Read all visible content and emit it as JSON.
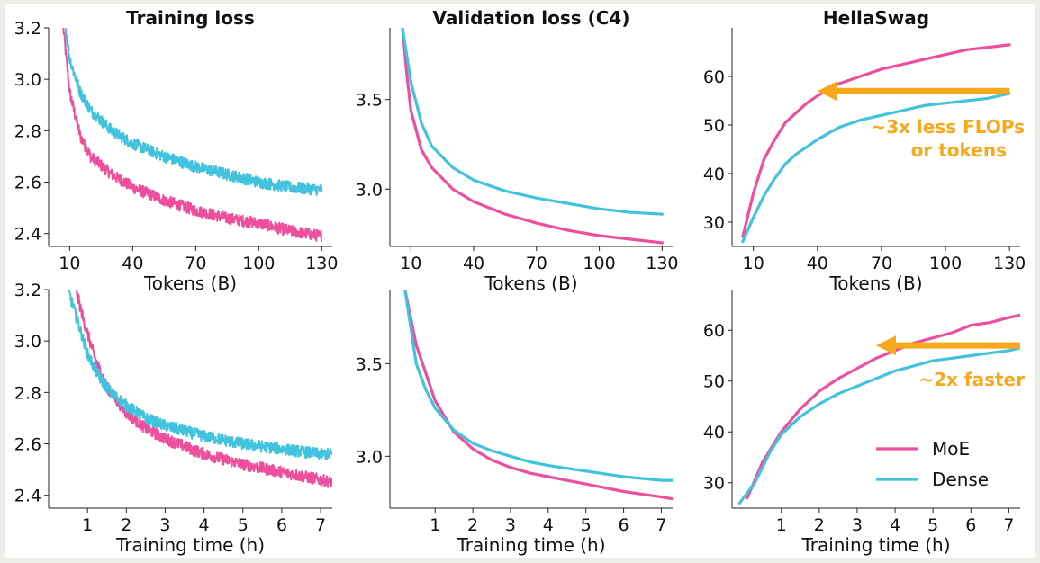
{
  "colors": {
    "moe": "#ee4f9c",
    "dense": "#42c3dd",
    "annotation": "#f7a81b",
    "axis": "#222222"
  },
  "legend": {
    "position": "bottom-right",
    "items": [
      "MoE",
      "Dense"
    ]
  },
  "chart_data": [
    {
      "id": "train-loss-tokens",
      "type": "line",
      "title": "Training loss",
      "xlabel": "Tokens (B)",
      "ylabel": "",
      "xlim": [
        0,
        135
      ],
      "ylim": [
        2.35,
        3.2
      ],
      "xticks": [
        10,
        40,
        70,
        100,
        130
      ],
      "xtick_labels": [
        "10",
        "40",
        "70",
        "100",
        "130"
      ],
      "yticks": [
        2.4,
        2.6,
        2.8,
        3.0,
        3.2
      ],
      "ytick_labels": [
        "2.4",
        "2.6",
        "2.8",
        "3.0",
        "3.2"
      ],
      "noisy": true,
      "series": [
        {
          "name": "MoE",
          "x": [
            7,
            10,
            15,
            20,
            30,
            40,
            55,
            70,
            85,
            100,
            115,
            130
          ],
          "y": [
            3.2,
            2.95,
            2.78,
            2.7,
            2.63,
            2.58,
            2.53,
            2.49,
            2.46,
            2.44,
            2.41,
            2.39
          ]
        },
        {
          "name": "Dense",
          "x": [
            8,
            10,
            15,
            20,
            30,
            40,
            55,
            70,
            85,
            100,
            115,
            130
          ],
          "y": [
            3.2,
            3.08,
            2.95,
            2.88,
            2.8,
            2.75,
            2.7,
            2.66,
            2.63,
            2.6,
            2.58,
            2.57
          ]
        }
      ]
    },
    {
      "id": "val-loss-tokens",
      "type": "line",
      "title": "Validation loss (C4)",
      "xlabel": "Tokens (B)",
      "ylabel": "",
      "xlim": [
        0,
        135
      ],
      "ylim": [
        2.68,
        3.9
      ],
      "xticks": [
        10,
        40,
        70,
        100,
        130
      ],
      "xtick_labels": [
        "10",
        "40",
        "70",
        "100",
        "130"
      ],
      "yticks": [
        3.0,
        3.5
      ],
      "ytick_labels": [
        "3.0",
        "3.5"
      ],
      "series": [
        {
          "name": "MoE",
          "x": [
            6,
            8,
            10,
            15,
            20,
            30,
            40,
            55,
            70,
            85,
            100,
            115,
            130
          ],
          "y": [
            3.9,
            3.65,
            3.44,
            3.22,
            3.12,
            3.0,
            2.93,
            2.86,
            2.81,
            2.77,
            2.74,
            2.72,
            2.7
          ]
        },
        {
          "name": "Dense",
          "x": [
            6,
            8,
            10,
            15,
            20,
            30,
            40,
            55,
            70,
            85,
            100,
            115,
            130
          ],
          "y": [
            3.9,
            3.75,
            3.6,
            3.37,
            3.24,
            3.12,
            3.05,
            2.99,
            2.95,
            2.92,
            2.89,
            2.87,
            2.86
          ]
        }
      ]
    },
    {
      "id": "hellaswag-tokens",
      "type": "line",
      "title": "HellaSwag",
      "xlabel": "Tokens (B)",
      "ylabel": "",
      "xlim": [
        0,
        135
      ],
      "ylim": [
        25,
        70
      ],
      "xticks": [
        10,
        40,
        70,
        100,
        130
      ],
      "xtick_labels": [
        "10",
        "40",
        "70",
        "100",
        "130"
      ],
      "yticks": [
        30,
        40,
        50,
        60
      ],
      "ytick_labels": [
        "30",
        "40",
        "50",
        "60"
      ],
      "series": [
        {
          "name": "MoE",
          "x": [
            5,
            10,
            15,
            20,
            25,
            30,
            35,
            40,
            50,
            60,
            70,
            80,
            90,
            100,
            110,
            120,
            130
          ],
          "y": [
            27,
            36,
            43,
            47,
            50.5,
            52.5,
            54.5,
            56,
            58.5,
            60,
            61.5,
            62.5,
            63.5,
            64.5,
            65.5,
            66,
            66.5
          ]
        },
        {
          "name": "Dense",
          "x": [
            5,
            10,
            15,
            20,
            25,
            30,
            35,
            40,
            50,
            60,
            70,
            80,
            90,
            100,
            110,
            120,
            130
          ],
          "y": [
            26,
            31,
            35.5,
            39,
            42,
            44,
            45.5,
            47,
            49.5,
            51,
            52,
            53,
            54,
            54.5,
            55,
            55.5,
            56.5
          ]
        }
      ],
      "arrow": {
        "from": [
          130,
          57
        ],
        "to": [
          40,
          57
        ]
      },
      "annotation": [
        "~3x less FLOPs",
        "or tokens"
      ]
    },
    {
      "id": "train-loss-time",
      "type": "line",
      "title": "",
      "xlabel": "Training time (h)",
      "ylabel": "",
      "xlim": [
        0,
        7.3
      ],
      "ylim": [
        2.35,
        3.2
      ],
      "xticks": [
        1,
        2,
        3,
        4,
        5,
        6,
        7
      ],
      "xtick_labels": [
        "1",
        "2",
        "3",
        "4",
        "5",
        "6",
        "7"
      ],
      "yticks": [
        2.4,
        2.6,
        2.8,
        3.0,
        3.2
      ],
      "ytick_labels": [
        "2.4",
        "2.6",
        "2.8",
        "3.0",
        "3.2"
      ],
      "noisy": true,
      "series": [
        {
          "name": "MoE",
          "x": [
            0.7,
            0.9,
            1.2,
            1.5,
            2.0,
            2.5,
            3.0,
            3.5,
            4.0,
            5.0,
            6.0,
            7.0,
            7.3
          ],
          "y": [
            3.2,
            3.08,
            2.93,
            2.82,
            2.72,
            2.66,
            2.62,
            2.59,
            2.56,
            2.52,
            2.49,
            2.46,
            2.45
          ]
        },
        {
          "name": "Dense",
          "x": [
            0.5,
            0.8,
            1.0,
            1.3,
            1.6,
            2.0,
            2.5,
            3.0,
            3.5,
            4.0,
            5.0,
            6.0,
            7.0,
            7.3
          ],
          "y": [
            3.2,
            3.05,
            2.95,
            2.86,
            2.8,
            2.75,
            2.7,
            2.67,
            2.65,
            2.63,
            2.6,
            2.58,
            2.56,
            2.56
          ]
        }
      ]
    },
    {
      "id": "val-loss-time",
      "type": "line",
      "title": "",
      "xlabel": "Training time (h)",
      "ylabel": "",
      "xlim": [
        -0.2,
        7.3
      ],
      "ylim": [
        2.72,
        3.9
      ],
      "xticks": [
        1,
        2,
        3,
        4,
        5,
        6,
        7
      ],
      "xtick_labels": [
        "1",
        "2",
        "3",
        "4",
        "5",
        "6",
        "7"
      ],
      "yticks": [
        3.0,
        3.5
      ],
      "ytick_labels": [
        "3.0",
        "3.5"
      ],
      "series": [
        {
          "name": "MoE",
          "x": [
            0.2,
            0.5,
            0.75,
            1.0,
            1.5,
            2.0,
            2.5,
            3.0,
            3.5,
            4.0,
            5.0,
            6.0,
            7.0,
            7.3
          ],
          "y": [
            3.9,
            3.6,
            3.45,
            3.3,
            3.13,
            3.04,
            2.98,
            2.94,
            2.91,
            2.89,
            2.85,
            2.81,
            2.78,
            2.77
          ]
        },
        {
          "name": "Dense",
          "x": [
            0.2,
            0.5,
            0.75,
            1.0,
            1.5,
            2.0,
            2.5,
            3.0,
            3.5,
            4.0,
            5.0,
            6.0,
            7.0,
            7.3
          ],
          "y": [
            3.9,
            3.5,
            3.36,
            3.26,
            3.14,
            3.07,
            3.03,
            3.0,
            2.97,
            2.95,
            2.92,
            2.89,
            2.87,
            2.87
          ]
        }
      ]
    },
    {
      "id": "hellaswag-time",
      "type": "line",
      "title": "",
      "xlabel": "Training time (h)",
      "ylabel": "",
      "xlim": [
        -0.3,
        7.3
      ],
      "ylim": [
        25,
        68
      ],
      "xticks": [
        1,
        2,
        3,
        4,
        5,
        6,
        7
      ],
      "xtick_labels": [
        "1",
        "2",
        "3",
        "4",
        "5",
        "6",
        "7"
      ],
      "yticks": [
        30,
        40,
        50,
        60
      ],
      "ytick_labels": [
        "30",
        "40",
        "50",
        "60"
      ],
      "series": [
        {
          "name": "MoE",
          "x": [
            0.1,
            0.5,
            1.0,
            1.5,
            2.0,
            2.5,
            3.0,
            3.5,
            4.0,
            4.5,
            5.0,
            5.5,
            6.0,
            6.5,
            7.0,
            7.3
          ],
          "y": [
            27,
            34,
            40,
            44.5,
            48,
            50.5,
            52.5,
            54.5,
            56,
            57.5,
            58.5,
            59.5,
            61,
            61.5,
            62.5,
            63
          ]
        },
        {
          "name": "Dense",
          "x": [
            -0.1,
            0.3,
            0.7,
            1.0,
            1.5,
            2.0,
            2.5,
            3.0,
            3.5,
            4.0,
            4.5,
            5.0,
            5.5,
            6.0,
            6.5,
            7.0,
            7.3
          ],
          "y": [
            26,
            30,
            36,
            39.5,
            43,
            45.5,
            47.5,
            49,
            50.5,
            52,
            53,
            54,
            54.5,
            55,
            55.5,
            56,
            56.5
          ]
        }
      ],
      "arrow": {
        "from": [
          7.3,
          57
        ],
        "to": [
          3.5,
          57
        ]
      },
      "annotation": [
        "~2x faster"
      ],
      "show_legend": true
    }
  ]
}
